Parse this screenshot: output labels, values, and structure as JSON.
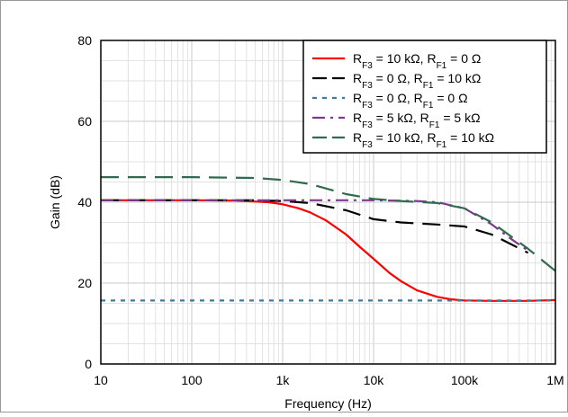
{
  "chart_data": {
    "type": "line",
    "xlabel": "Frequency (Hz)",
    "ylabel": "Gain (dB)",
    "x_scale": "log",
    "xlim": [
      10,
      1000000
    ],
    "ylim": [
      0,
      80
    ],
    "x_ticks": [
      10,
      100,
      1000,
      10000,
      100000,
      1000000
    ],
    "x_tick_labels": [
      "10",
      "100",
      "1k",
      "10k",
      "100k",
      "1M"
    ],
    "y_ticks": [
      0,
      20,
      40,
      60,
      80
    ],
    "y_tick_labels": [
      "0",
      "20",
      "40",
      "60",
      "80"
    ],
    "grid": true,
    "legend_position": "top-right",
    "series": [
      {
        "name": "RF3 = 10 kΩ, RF1 = 0 Ω",
        "legend_parts": [
          {
            "t": "R",
            "sub": false
          },
          {
            "t": "F3",
            "sub": true
          },
          {
            "t": " = 10 kΩ, R",
            "sub": false
          },
          {
            "t": "F1",
            "sub": true
          },
          {
            "t": " = 0 Ω",
            "sub": false
          }
        ],
        "color": "#ff0000",
        "dash": "solid",
        "x": [
          10,
          100,
          300,
          700,
          1000,
          1500,
          2000,
          3000,
          5000,
          7000,
          10000,
          15000,
          20000,
          30000,
          50000,
          70000,
          100000,
          200000,
          500000,
          1000000
        ],
        "y": [
          40.5,
          40.5,
          40.4,
          40.0,
          39.5,
          38.5,
          37.5,
          35.5,
          32.0,
          29.0,
          26.0,
          22.5,
          20.5,
          18.2,
          16.6,
          16.0,
          15.7,
          15.6,
          15.6,
          15.8
        ]
      },
      {
        "name": "RF3 = 0 Ω, RF1 = 10 kΩ",
        "legend_parts": [
          {
            "t": "R",
            "sub": false
          },
          {
            "t": "F3",
            "sub": true
          },
          {
            "t": " = 0 Ω, R",
            "sub": false
          },
          {
            "t": "F1",
            "sub": true
          },
          {
            "t": " = 10 kΩ",
            "sub": false
          }
        ],
        "color": "#000000",
        "dash": "long-dash",
        "x": [
          10,
          100,
          500,
          1000,
          2000,
          5000,
          10000,
          20000,
          50000,
          100000,
          200000,
          500000
        ],
        "y": [
          40.5,
          40.5,
          40.5,
          40.3,
          39.8,
          38.0,
          35.8,
          35.0,
          34.5,
          34.0,
          32.0,
          27.5
        ]
      },
      {
        "name": "RF3 = 0 Ω, RF1 = 0 Ω",
        "legend_parts": [
          {
            "t": "R",
            "sub": false
          },
          {
            "t": "F3",
            "sub": true
          },
          {
            "t": " = 0 Ω, R",
            "sub": false
          },
          {
            "t": "F1",
            "sub": true
          },
          {
            "t": " = 0 Ω",
            "sub": false
          }
        ],
        "color": "#3f7a9e",
        "dash": "dotted",
        "x": [
          10,
          1000000
        ],
        "y": [
          15.7,
          15.7
        ]
      },
      {
        "name": "RF3 = 5 kΩ, RF1 = 5 kΩ",
        "legend_parts": [
          {
            "t": "R",
            "sub": false
          },
          {
            "t": "F3",
            "sub": true
          },
          {
            "t": " = 5 kΩ, R",
            "sub": false
          },
          {
            "t": "F1",
            "sub": true
          },
          {
            "t": " = 5 kΩ",
            "sub": false
          }
        ],
        "color": "#7b3a8c",
        "dash": "dash-dot",
        "x": [
          10,
          100,
          1000,
          5000,
          10000,
          30000,
          50000,
          100000,
          200000,
          300000,
          500000
        ],
        "y": [
          40.5,
          40.5,
          40.5,
          40.5,
          40.5,
          40.3,
          40.0,
          38.5,
          34.5,
          31.5,
          28.0
        ]
      },
      {
        "name": "RF3 = 10 kΩ, RF1 = 10 kΩ",
        "legend_parts": [
          {
            "t": "R",
            "sub": false
          },
          {
            "t": "F3",
            "sub": true
          },
          {
            "t": " = 10 kΩ, R",
            "sub": false
          },
          {
            "t": "F1",
            "sub": true
          },
          {
            "t": " = 10 kΩ",
            "sub": false
          }
        ],
        "color": "#2e6b4f",
        "dash": "long-dash",
        "x": [
          10,
          100,
          500,
          1000,
          2000,
          5000,
          10000,
          20000,
          50000,
          100000,
          200000,
          500000,
          1000000
        ],
        "y": [
          46.2,
          46.2,
          46.0,
          45.5,
          44.5,
          42.0,
          40.8,
          40.3,
          39.8,
          38.5,
          35.0,
          28.5,
          23.0
        ]
      }
    ]
  }
}
